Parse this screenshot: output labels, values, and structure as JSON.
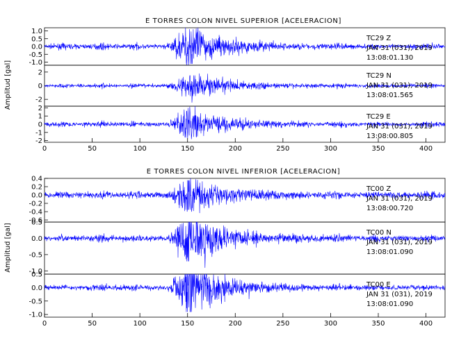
{
  "chart_data": [
    {
      "type": "line",
      "title": "E TORRES COLON NIVEL SUPERIOR [ACELERACION]",
      "ylabel": "Amplitud [gal]",
      "xlim": [
        0,
        420
      ],
      "x_ticks": [
        "0",
        "50",
        "100",
        "150",
        "200",
        "250",
        "300",
        "350",
        "400"
      ],
      "grid": false,
      "traces": [
        {
          "station": "TC29",
          "component": "Z",
          "label": "TC29    Z",
          "date": "JAN 31 (031), 2019",
          "time": "13:08:01.130",
          "ylim": [
            -1.2,
            1.2
          ],
          "y_ticks": [
            "-1.0",
            "-0.5",
            "0.0",
            "0.5",
            "1.0"
          ],
          "envelope": {
            "noise": 0.07,
            "peak": 1.1,
            "peak_x": 152
          }
        },
        {
          "station": "TC29",
          "component": "N",
          "label": "TC29    N",
          "date": "JAN 31 (031), 2019",
          "time": "13:08:01.565",
          "ylim": [
            -3,
            3
          ],
          "y_ticks": [
            "-2",
            "0",
            "2"
          ],
          "envelope": {
            "noise": 0.12,
            "peak": 1.5,
            "peak_x": 155
          }
        },
        {
          "station": "TC29",
          "component": "E",
          "label": "TC29    E",
          "date": "JAN 31 (031), 2019",
          "time": "13:08:00.805",
          "ylim": [
            -2.2,
            2.2
          ],
          "y_ticks": [
            "-2",
            "-1",
            "0",
            "1",
            "2"
          ],
          "envelope": {
            "noise": 0.12,
            "peak": 1.6,
            "peak_x": 150
          }
        }
      ]
    },
    {
      "type": "line",
      "title": "E TORRES COLON NIVEL INFERIOR [ACELERACION]",
      "ylabel": "Amplitud [gal]",
      "xlim": [
        0,
        420
      ],
      "x_ticks": [
        "0",
        "50",
        "100",
        "150",
        "200",
        "250",
        "300",
        "350",
        "400"
      ],
      "grid": false,
      "traces": [
        {
          "station": "TC00",
          "component": "Z",
          "label": "TC00    Z",
          "date": "JAN 31 (031), 2019",
          "time": "13:08:00.720",
          "ylim": [
            -0.65,
            0.4
          ],
          "y_ticks": [
            "-0.6",
            "-0.4",
            "-0.2",
            "0.0",
            "0.2",
            "0.4"
          ],
          "envelope": {
            "noise": 0.035,
            "peak": 0.35,
            "peak_x": 152
          }
        },
        {
          "station": "TC00",
          "component": "N",
          "label": "TC00    N",
          "date": "JAN 31 (031), 2019",
          "time": "13:08:01.090",
          "ylim": [
            -1.1,
            0.5
          ],
          "y_ticks": [
            "-1.0",
            "-0.5",
            "0.0",
            "0.5"
          ],
          "envelope": {
            "noise": 0.04,
            "peak": 0.7,
            "peak_x": 152
          }
        },
        {
          "station": "TC00",
          "component": "E",
          "label": "TC00    E",
          "date": "JAN 31 (031), 2019",
          "time": "13:08:01.090",
          "ylim": [
            -1.1,
            0.5
          ],
          "y_ticks": [
            "-1.0",
            "-0.5",
            "0.0",
            "0.5"
          ],
          "envelope": {
            "noise": 0.04,
            "peak": 0.9,
            "peak_x": 152
          }
        }
      ]
    }
  ],
  "style": {
    "trace_color": "#0000ff",
    "axis_color": "#000000"
  }
}
